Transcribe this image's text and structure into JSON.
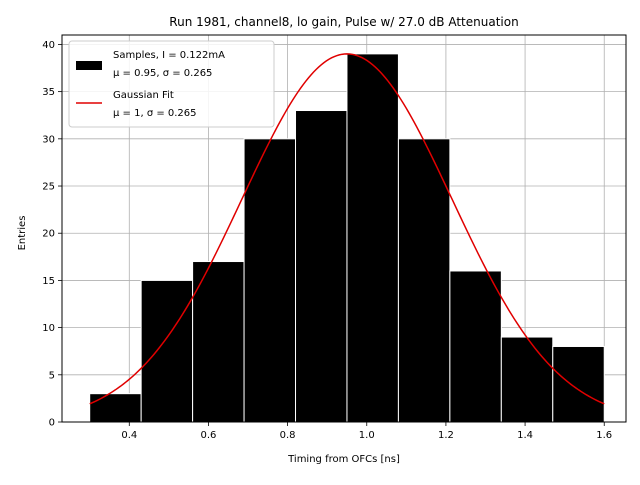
{
  "chart_data": {
    "type": "bar",
    "title": "Run 1981, channel8, lo gain, Pulse w/ 27.0 dB Attenuation",
    "xlabel": "Timing from OFCs [ns]",
    "ylabel": "Entries",
    "xlim": [
      0.23,
      1.655
    ],
    "ylim": [
      0,
      41
    ],
    "grid": true,
    "x_ticks": [
      0.4,
      0.6,
      0.8,
      1.0,
      1.2,
      1.4,
      1.6
    ],
    "x_tick_labels": [
      "0.4",
      "0.6",
      "0.8",
      "1.0",
      "1.2",
      "1.4",
      "1.6"
    ],
    "y_ticks": [
      0,
      5,
      10,
      15,
      20,
      25,
      30,
      35,
      40
    ],
    "y_tick_labels": [
      "0",
      "5",
      "10",
      "15",
      "20",
      "25",
      "30",
      "35",
      "40"
    ],
    "histogram": {
      "name": "Samples",
      "bin_edges": [
        0.3,
        0.43,
        0.56,
        0.69,
        0.82,
        0.95,
        1.08,
        1.21,
        1.34,
        1.47,
        1.6
      ],
      "counts": [
        3,
        15,
        17,
        30,
        33,
        39,
        30,
        16,
        9,
        8
      ],
      "color": "#000000",
      "edge_color": "#ffffff"
    },
    "fit": {
      "type": "line",
      "name": "Gaussian Fit",
      "mu": 0.95,
      "sigma": 0.265,
      "amplitude": 39,
      "x_range": [
        0.3,
        1.6
      ],
      "color": "#e00000"
    },
    "legend": {
      "position": "top-left",
      "entries": [
        {
          "line1": "Samples, I = 0.122mA",
          "line2": "μ = 0.95, σ = 0.265"
        },
        {
          "line1": "Gaussian Fit",
          "line2": "μ = 1, σ = 0.265"
        }
      ]
    }
  }
}
